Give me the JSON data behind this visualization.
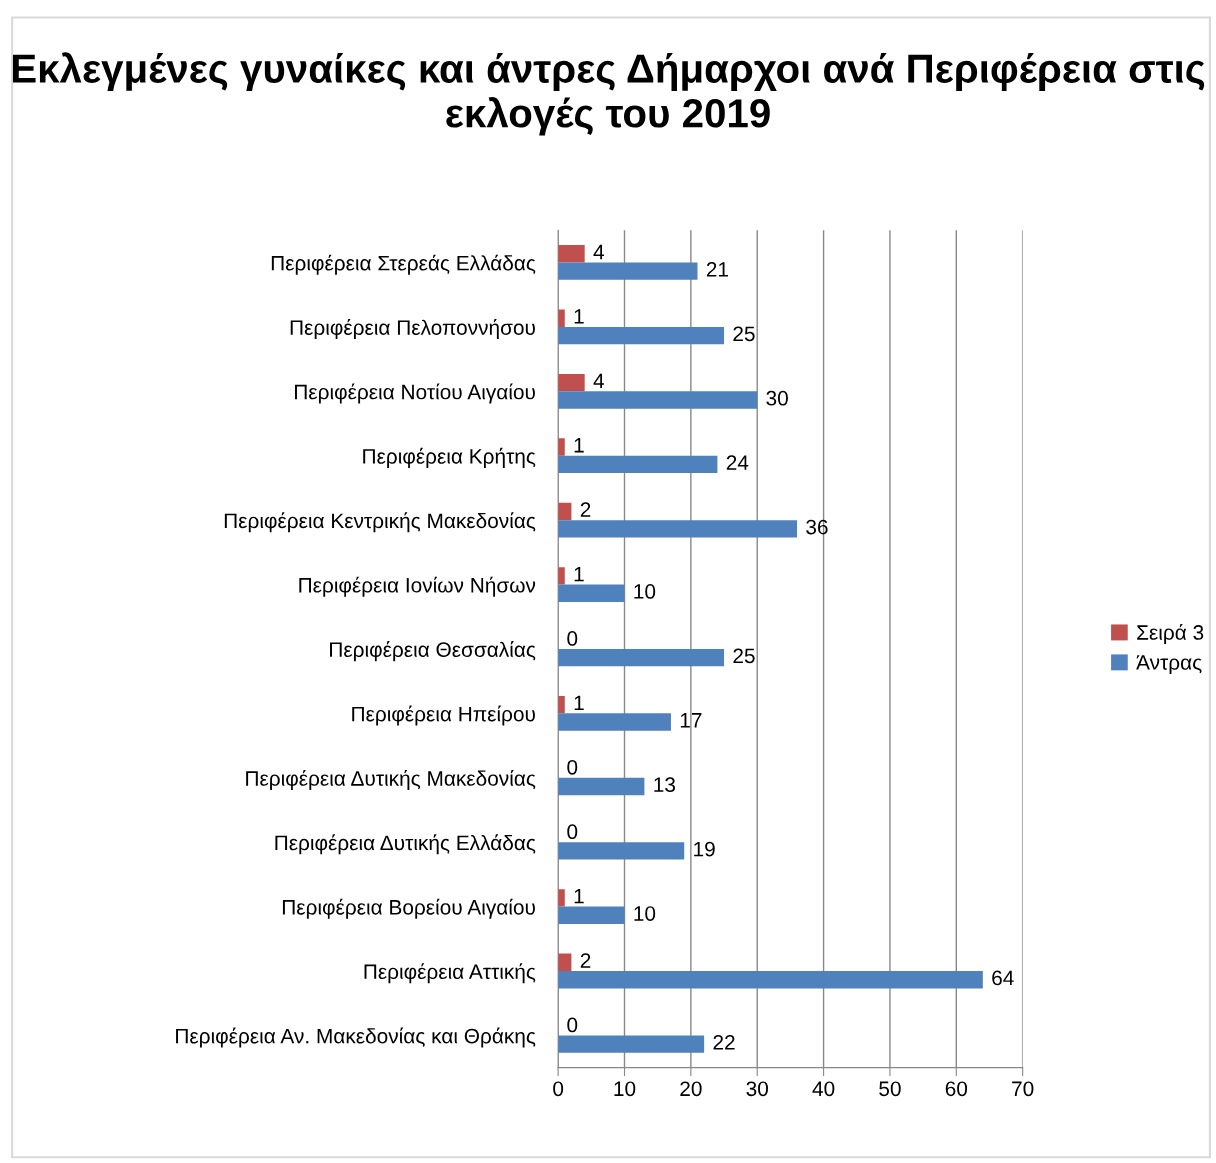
{
  "chart_data": {
    "type": "bar",
    "orientation": "horizontal",
    "title": "Εκλεγμένες γυναίκες και άντρες Δήμαρχοι ανά Περιφέρεια στις εκλογές του 2019",
    "categories": [
      "Περιφέρεια Στερεάς Ελλάδας",
      "Περιφέρεια Πελοποννήσου",
      "Περιφέρεια Νοτίου Αιγαίου",
      "Περιφέρεια Κρήτης",
      "Περιφέρεια Κεντρικής Μακεδονίας",
      "Περιφέρεια Ιονίων Νήσων",
      "Περιφέρεια Θεσσαλίας",
      "Περιφέρεια Ηπείρου",
      "Περιφέρεια Δυτικής Μακεδονίας",
      "Περιφέρεια Δυτικής Ελλάδας",
      "Περιφέρεια Βορείου Αιγαίου",
      "Περιφέρεια Αττικής",
      "Περιφέρεια Αν. Μακεδονίας και Θράκης"
    ],
    "series": [
      {
        "name": "Σειρά 3",
        "color": "#c0504d",
        "values": [
          4,
          1,
          4,
          1,
          2,
          1,
          0,
          1,
          0,
          0,
          1,
          2,
          0
        ]
      },
      {
        "name": "Άντρας",
        "color": "#4f81bd",
        "values": [
          21,
          25,
          30,
          24,
          36,
          10,
          25,
          17,
          13,
          19,
          10,
          64,
          22
        ]
      }
    ],
    "xlim": [
      0,
      70
    ],
    "xticks": [
      0,
      10,
      20,
      30,
      40,
      50,
      60,
      70
    ],
    "grid": "x",
    "legend": "right",
    "data_labels": true
  }
}
